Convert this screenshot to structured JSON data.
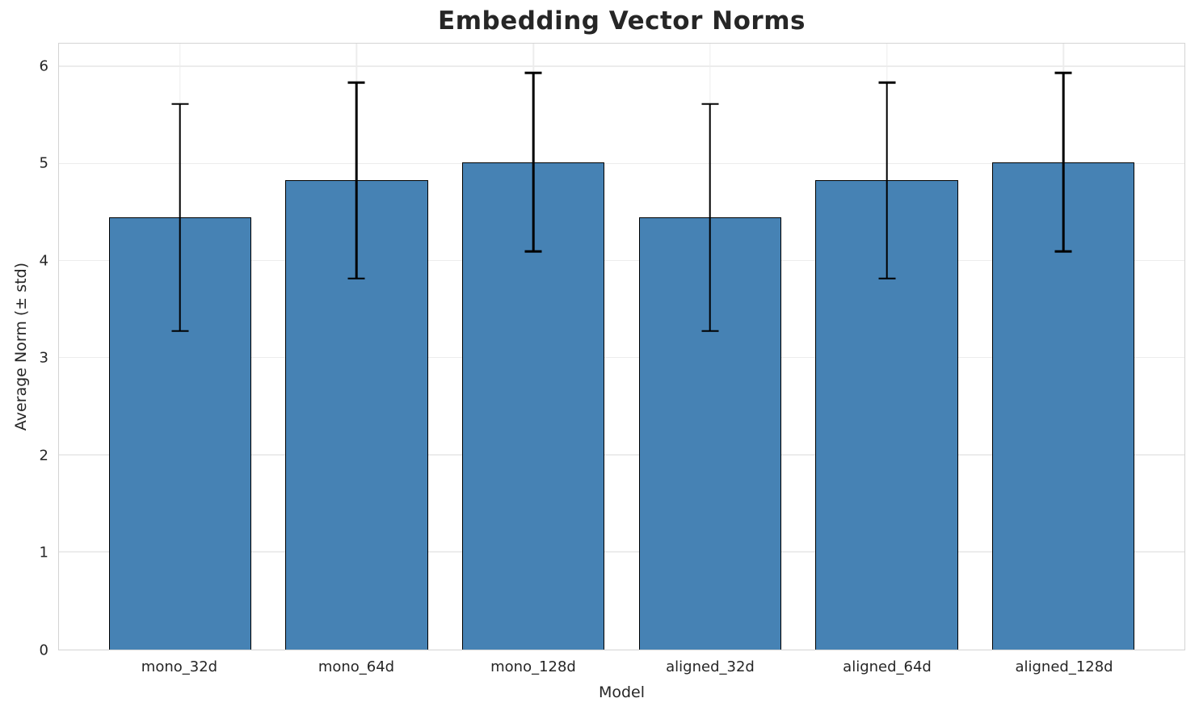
{
  "chart_data": {
    "type": "bar",
    "title": "Embedding Vector Norms",
    "xlabel": "Model",
    "ylabel": "Average Norm (± std)",
    "categories": [
      "mono_32d",
      "mono_64d",
      "mono_128d",
      "aligned_32d",
      "aligned_64d",
      "aligned_128d"
    ],
    "values": [
      4.45,
      4.83,
      5.02,
      4.45,
      4.83,
      5.02
    ],
    "errors": [
      1.17,
      1.01,
      0.92,
      1.17,
      1.01,
      0.92
    ],
    "error_upper": [
      5.62,
      5.84,
      5.94,
      5.62,
      5.84,
      5.94
    ],
    "error_lower": [
      3.28,
      3.82,
      4.1,
      3.28,
      3.82,
      4.1
    ],
    "ylim": [
      0,
      6.24
    ],
    "yticks": [
      0,
      1,
      2,
      3,
      4,
      5,
      6
    ],
    "grid": true,
    "legend": "none",
    "bar_color": "#4682b4",
    "bar_edge_color": "#000000",
    "error_color": "#000000",
    "grid_color": "#ececec",
    "spine_color": "#d4d4d4",
    "text_color": "#262626",
    "layout": {
      "bar_width_ratio": 0.806,
      "side_padding_pct": 2.9
    }
  }
}
